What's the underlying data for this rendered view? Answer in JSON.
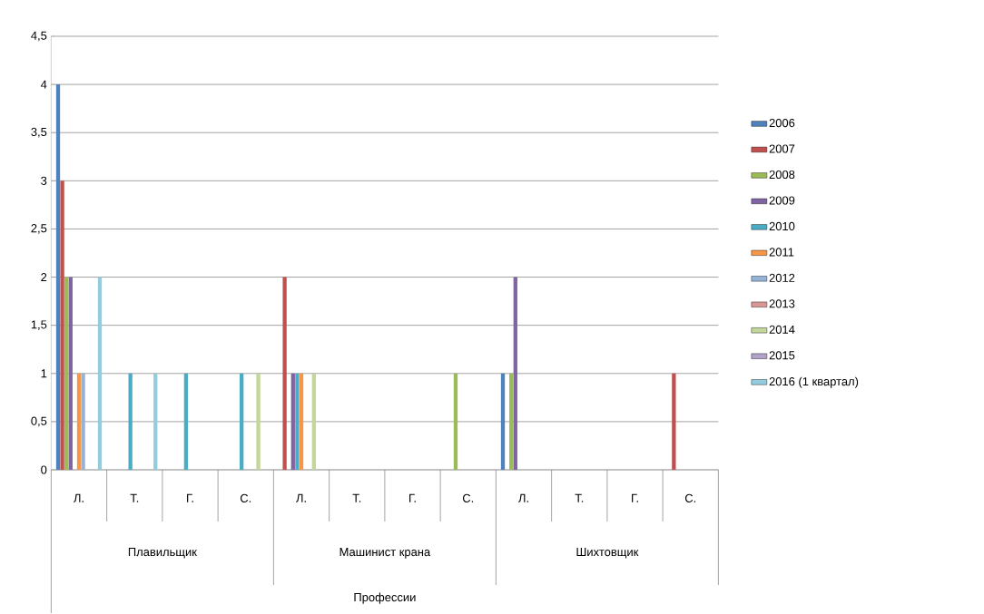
{
  "chart_data": {
    "type": "bar",
    "categories": [
      "Л.",
      "Т.",
      "Г.",
      "С.",
      "Л.",
      "Т.",
      "Г.",
      "С.",
      "Л.",
      "Т.",
      "Г.",
      "С."
    ],
    "annotations": [
      "Плавильщик",
      "Машинист крана",
      "Шихтовщик",
      "Профессии"
    ],
    "series": [
      {
        "name": "2006",
        "color": "#4f81bd",
        "values": [
          4,
          0,
          0,
          0,
          0,
          0,
          0,
          0,
          1,
          0,
          0,
          0
        ]
      },
      {
        "name": "2007",
        "color": "#c0504d",
        "values": [
          3,
          0,
          0,
          0,
          2,
          0,
          0,
          0,
          0,
          0,
          0,
          1
        ]
      },
      {
        "name": "2008",
        "color": "#9bbb59",
        "values": [
          2,
          0,
          0,
          0,
          0,
          0,
          0,
          1,
          1,
          0,
          0,
          0
        ]
      },
      {
        "name": "2009",
        "color": "#8064a2",
        "values": [
          2,
          0,
          0,
          0,
          1,
          0,
          0,
          0,
          2,
          0,
          0,
          0
        ]
      },
      {
        "name": "2010",
        "color": "#4bacc6",
        "values": [
          0,
          1,
          1,
          1,
          1,
          0,
          0,
          0,
          0,
          0,
          0,
          0
        ]
      },
      {
        "name": "2011",
        "color": "#f79646",
        "values": [
          1,
          0,
          0,
          0,
          1,
          0,
          0,
          0,
          0,
          0,
          0,
          0
        ]
      },
      {
        "name": "2012",
        "color": "#95b3d7",
        "values": [
          1,
          0,
          0,
          0,
          0,
          0,
          0,
          0,
          0,
          0,
          0,
          0
        ]
      },
      {
        "name": "2013",
        "color": "#da9694",
        "values": [
          0,
          0,
          0,
          0,
          0,
          0,
          0,
          0,
          0,
          0,
          0,
          0
        ]
      },
      {
        "name": "2014",
        "color": "#c3d69b",
        "values": [
          0,
          0,
          0,
          1,
          1,
          0,
          0,
          0,
          0,
          0,
          0,
          0
        ]
      },
      {
        "name": "2015",
        "color": "#b3a2c7",
        "values": [
          0,
          0,
          0,
          0,
          0,
          0,
          0,
          0,
          0,
          0,
          0,
          0
        ]
      },
      {
        "name": "2016 (1 квартал)",
        "color": "#93cddd",
        "values": [
          2,
          1,
          0,
          0,
          0,
          0,
          0,
          0,
          0,
          0,
          0,
          0
        ]
      }
    ],
    "ylim": [
      0,
      4.5
    ],
    "yticks": [
      0,
      {
        "value": 0.5,
        "label": "0,5"
      },
      1,
      {
        "value": 1.5,
        "label": "1,5"
      },
      2,
      {
        "value": 2.5,
        "label": "2,5"
      },
      3,
      {
        "value": 3.5,
        "label": "3,5"
      },
      4,
      {
        "value": 4.5,
        "label": "4,5"
      }
    ],
    "grid": "y",
    "legend": "right"
  }
}
